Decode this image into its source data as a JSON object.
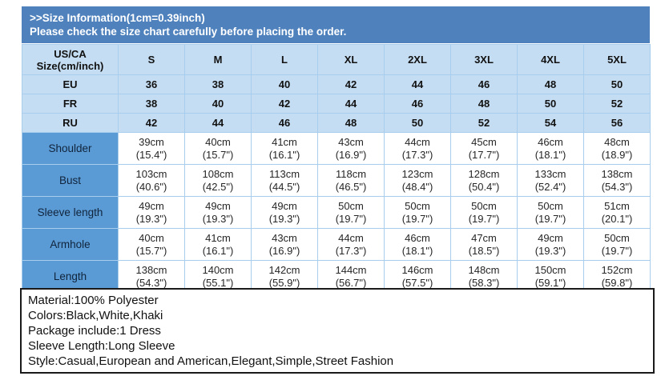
{
  "banner": {
    "line1": ">>Size Information(1cm=0.39inch)",
    "line2": "Please check the size chart carefully before placing the order."
  },
  "table": {
    "corner_header": [
      "US/CA",
      "Size(cm/inch)"
    ],
    "size_headers": [
      "S",
      "M",
      "L",
      "XL",
      "2XL",
      "3XL",
      "4XL",
      "5XL"
    ],
    "region_rows": [
      {
        "label": "EU",
        "values": [
          "36",
          "38",
          "40",
          "42",
          "44",
          "46",
          "48",
          "50"
        ]
      },
      {
        "label": "FR",
        "values": [
          "38",
          "40",
          "42",
          "44",
          "46",
          "48",
          "50",
          "52"
        ]
      },
      {
        "label": "RU",
        "values": [
          "42",
          "44",
          "46",
          "48",
          "50",
          "52",
          "54",
          "56"
        ]
      }
    ],
    "measure_rows": [
      {
        "label": "Shoulder",
        "cm": [
          "39cm",
          "40cm",
          "41cm",
          "43cm",
          "44cm",
          "45cm",
          "46cm",
          "48cm"
        ],
        "inch": [
          "(15.4\")",
          "(15.7\")",
          "(16.1\")",
          "(16.9\")",
          "(17.3\")",
          "(17.7\")",
          "(18.1\")",
          "(18.9\")"
        ]
      },
      {
        "label": "Bust",
        "cm": [
          "103cm",
          "108cm",
          "113cm",
          "118cm",
          "123cm",
          "128cm",
          "133cm",
          "138cm"
        ],
        "inch": [
          "(40.6\")",
          "(42.5\")",
          "(44.5\")",
          "(46.5\")",
          "(48.4\")",
          "(50.4\")",
          "(52.4\")",
          "(54.3\")"
        ]
      },
      {
        "label": "Sleeve length",
        "cm": [
          "49cm",
          "49cm",
          "49cm",
          "50cm",
          "50cm",
          "50cm",
          "50cm",
          "51cm"
        ],
        "inch": [
          "(19.3\")",
          "(19.3\")",
          "(19.3\")",
          "(19.7\")",
          "(19.7\")",
          "(19.7\")",
          "(19.7\")",
          "(20.1\")"
        ]
      },
      {
        "label": "Armhole",
        "cm": [
          "40cm",
          "41cm",
          "43cm",
          "44cm",
          "46cm",
          "47cm",
          "49cm",
          "50cm"
        ],
        "inch": [
          "(15.7\")",
          "(16.1\")",
          "(16.9\")",
          "(17.3\")",
          "(18.1\")",
          "(18.5\")",
          "(19.3\")",
          "(19.7\")"
        ]
      },
      {
        "label": "Length",
        "cm": [
          "138cm",
          "140cm",
          "142cm",
          "144cm",
          "146cm",
          "148cm",
          "150cm",
          "152cm"
        ],
        "inch": [
          "(54.3\")",
          "(55.1\")",
          "(55.9\")",
          "(56.7\")",
          "(57.5\")",
          "(58.3\")",
          "(59.1\")",
          "(59.8\")"
        ]
      }
    ]
  },
  "details": {
    "lines": [
      "Material:100% Polyester",
      "Colors:Black,White,Khaki",
      "Package include:1 Dress",
      "Sleeve Length:Long Sleeve",
      "Style:Casual,European and American,Elegant,Simple,Street Fashion"
    ]
  },
  "colors": {
    "banner_bg": "#4f81bd",
    "header_cell_bg": "#c5ddf2",
    "measure_label_bg": "#5b9bd5",
    "grid_line": "#a9cdec",
    "banner_text": "#ffffff"
  }
}
